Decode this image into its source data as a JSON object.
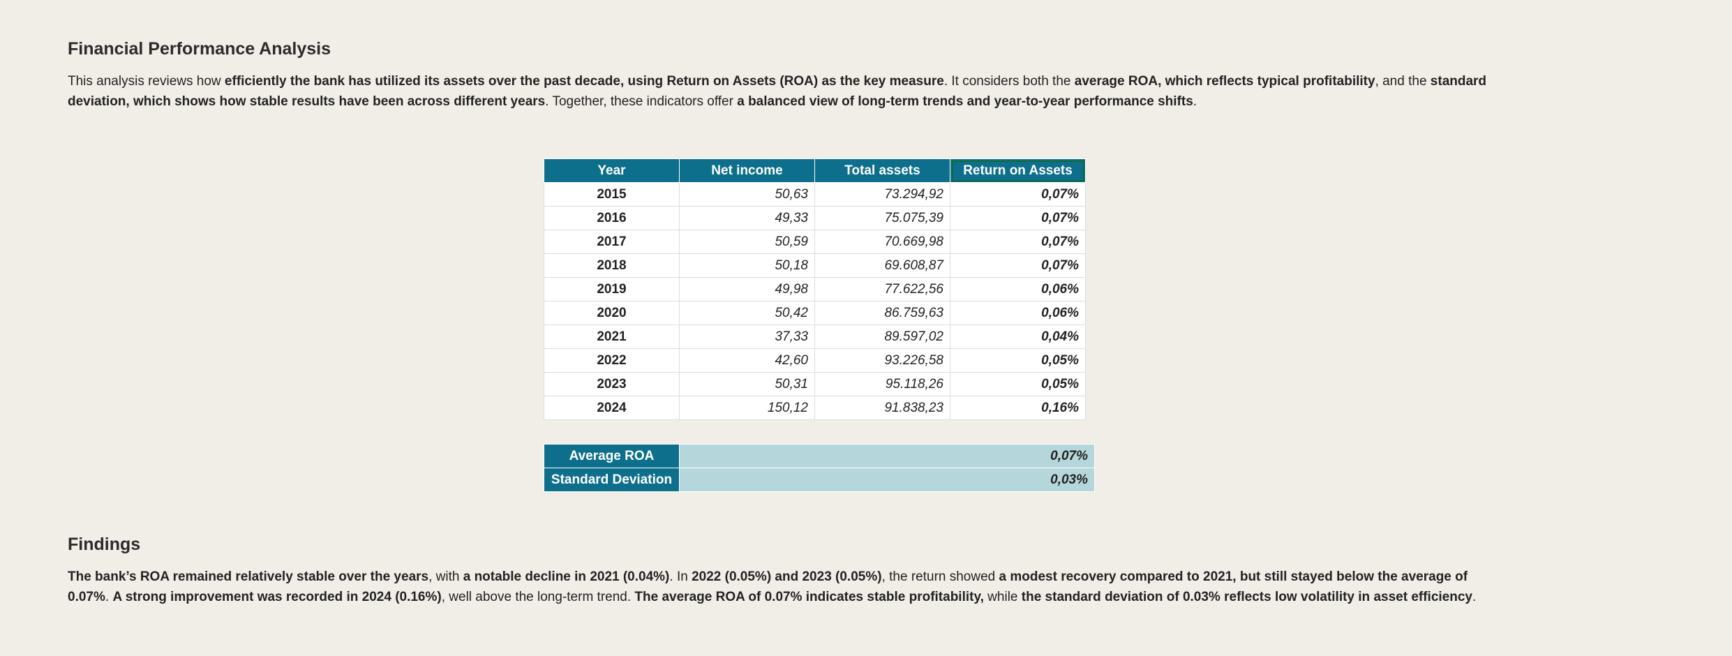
{
  "title": "Financial Performance Analysis",
  "intro": [
    {
      "t": "This analysis reviews how ",
      "b": false
    },
    {
      "t": "efficiently the bank has utilized its assets over the past decade, using Return on Assets (ROA) as the key measure",
      "b": true
    },
    {
      "t": ". It considers both the ",
      "b": false
    },
    {
      "t": "average ROA, which reflects typical profitability",
      "b": true
    },
    {
      "t": ", and the ",
      "b": false
    },
    {
      "t": "standard deviation, which shows how stable results have been across different years",
      "b": true
    },
    {
      "t": ". Together, these indicators offer ",
      "b": false
    },
    {
      "t": "a balanced view of long-term trends and year-to-year performance shifts",
      "b": true
    },
    {
      "t": ".",
      "b": false
    }
  ],
  "table": {
    "headers": [
      "Year",
      "Net income",
      "Total assets",
      "Return on Assets"
    ],
    "rows": [
      [
        "2015",
        "50,63",
        "73.294,92",
        "0,07%"
      ],
      [
        "2016",
        "49,33",
        "75.075,39",
        "0,07%"
      ],
      [
        "2017",
        "50,59",
        "70.669,98",
        "0,07%"
      ],
      [
        "2018",
        "50,18",
        "69.608,87",
        "0,07%"
      ],
      [
        "2019",
        "49,98",
        "77.622,56",
        "0,06%"
      ],
      [
        "2020",
        "50,42",
        "86.759,63",
        "0,06%"
      ],
      [
        "2021",
        "37,33",
        "89.597,02",
        "0,04%"
      ],
      [
        "2022",
        "42,60",
        "93.226,58",
        "0,05%"
      ],
      [
        "2023",
        "50,31",
        "95.118,26",
        "0,05%"
      ],
      [
        "2024",
        "150,12",
        "91.838,23",
        "0,16%"
      ]
    ]
  },
  "summary": [
    {
      "label": "Average ROA",
      "value": "0,07%"
    },
    {
      "label": "Standard Deviation",
      "value": "0,03%"
    }
  ],
  "findings_title": "Findings",
  "findings": [
    {
      "t": "The bank’s ROA remained relatively stable over the years",
      "b": true
    },
    {
      "t": ", with ",
      "b": false
    },
    {
      "t": "a notable decline in 2021 (0.04%)",
      "b": true
    },
    {
      "t": ". In ",
      "b": false
    },
    {
      "t": "2022 (0.05%) and 2023 (0.05%)",
      "b": true
    },
    {
      "t": ", the return showed ",
      "b": false
    },
    {
      "t": "a modest recovery compared to 2021, but still stayed below the average of 0.07%",
      "b": true
    },
    {
      "t": ". ",
      "b": false
    },
    {
      "t": "A strong improvement was recorded in 2024 (0.16%)",
      "b": true
    },
    {
      "t": ", well above the long-term trend. ",
      "b": false
    },
    {
      "t": "The average ROA of 0.07% indicates stable profitability,",
      "b": true
    },
    {
      "t": " while ",
      "b": false
    },
    {
      "t": "the standard deviation of 0.03% reflects low volatility in asset efficiency",
      "b": true
    },
    {
      "t": ".",
      "b": false
    }
  ],
  "colors": {
    "header": "#0d6f8b",
    "summary_value_bg": "#b5d7dc",
    "background": "#f1eee8"
  }
}
